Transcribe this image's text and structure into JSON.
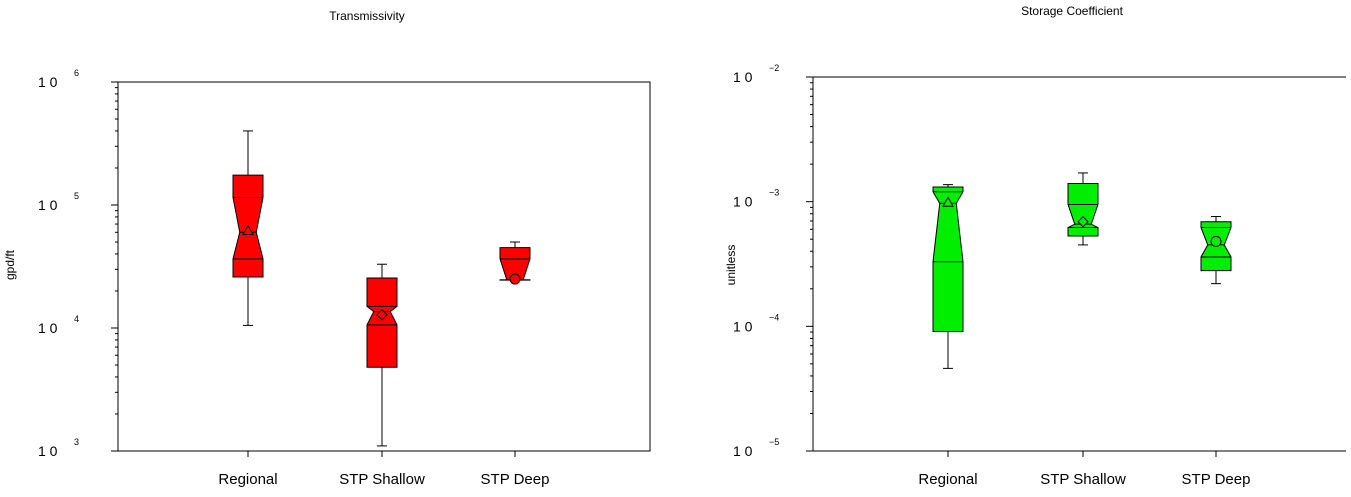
{
  "chart_data": [
    {
      "type": "box",
      "title": "Transmissivity",
      "ylabel": "gpd/ft",
      "xlabel": "",
      "yscale": "log",
      "ylim": [
        1000,
        1000000
      ],
      "yticks": [
        {
          "base": "1 0",
          "exp": "3"
        },
        {
          "base": "1 0",
          "exp": "4"
        },
        {
          "base": "1 0",
          "exp": "5"
        },
        {
          "base": "1 0",
          "exp": "6"
        }
      ],
      "box_color": "#ff0000",
      "notched": true,
      "categories": [
        "Regional",
        "STP Shallow",
        "STP Deep"
      ],
      "boxes": [
        {
          "min": 10500,
          "q1": 26000,
          "notch_low": 36500,
          "median": 60000,
          "notch_high": 115000,
          "q3": 175000,
          "max": 400000,
          "mean": 62000,
          "mean_marker": "triangle"
        },
        {
          "min": 1100,
          "q1": 4800,
          "notch_low": 10600,
          "median": 13600,
          "notch_high": 15000,
          "q3": 25500,
          "max": 33000,
          "mean": 12800,
          "mean_marker": "diamond"
        },
        {
          "min": 24500,
          "q1": 24500,
          "notch_low": 24600,
          "median": 24700,
          "notch_high": 36500,
          "q3": 45000,
          "max": 50000,
          "mean": 25000,
          "mean_marker": "circle"
        }
      ]
    },
    {
      "type": "box",
      "title": "Storage Coefficient",
      "ylabel": "unitless",
      "xlabel": "",
      "yscale": "log",
      "ylim": [
        1e-05,
        0.01
      ],
      "yticks": [
        {
          "base": "1 0",
          "exp": "−5"
        },
        {
          "base": "1 0",
          "exp": "−4"
        },
        {
          "base": "1 0",
          "exp": "−3"
        },
        {
          "base": "1 0",
          "exp": "−2"
        }
      ],
      "box_color": "#00ee00",
      "notched": true,
      "categories": [
        "Regional",
        "STP Shallow",
        "STP Deep"
      ],
      "boxes": [
        {
          "min": 4.6e-05,
          "q1": 9.1e-05,
          "notch_low": 0.00033,
          "median": 0.00097,
          "notch_high": 0.0012,
          "q3": 0.00131,
          "max": 0.00137,
          "mean": 0.00099,
          "mean_marker": "triangle"
        },
        {
          "min": 0.00045,
          "q1": 0.00053,
          "notch_low": 0.00062,
          "median": 0.00066,
          "notch_high": 0.00095,
          "q3": 0.0014,
          "max": 0.0017,
          "mean": 0.00069,
          "mean_marker": "diamond"
        },
        {
          "min": 0.00022,
          "q1": 0.00028,
          "notch_low": 0.00036,
          "median": 0.00045,
          "notch_high": 0.00062,
          "q3": 0.00069,
          "max": 0.00076,
          "mean": 0.00048,
          "mean_marker": "circle"
        }
      ]
    }
  ]
}
